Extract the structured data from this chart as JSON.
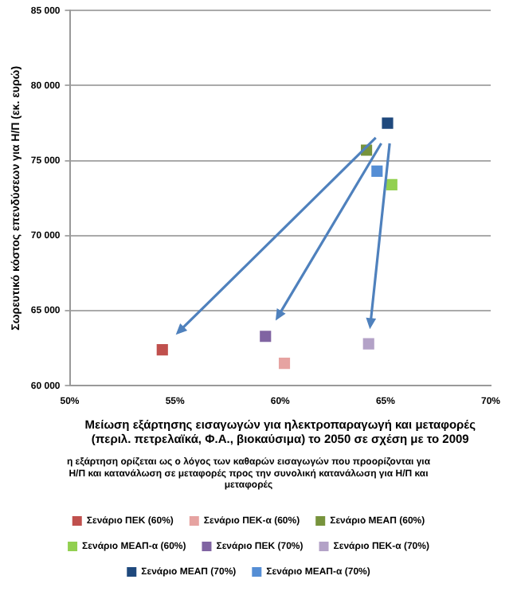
{
  "chart_data": {
    "type": "scatter",
    "marker": "square",
    "legend": "bottom",
    "grid": "y",
    "xlabel": "Μείωση εξάρτησης εισαγωγών για ηλεκτροπαραγωγή και μεταφορές (περιλ. πετρελαϊκά, Φ.Α., βιοκαύσιμα) το 2050 σε σχέση με το 2009",
    "ylabel": "Σωρευτικό κόστος επενδύσεων για Η/Π (εκ. ευρώ)",
    "annotations": [
      "η εξάρτηση ορίζεται ως ο λόγος των καθαρών εισαγωγών που προορίζονται για Η/Π και κατανάλωση σε μεταφορές προς την συνολική κατανάλωση για Η/Π και μεταφορές"
    ],
    "xlim": [
      50,
      70
    ],
    "xticks": [
      {
        "value": 50,
        "label": "50%"
      },
      {
        "value": 55,
        "label": "55%"
      },
      {
        "value": 60,
        "label": "60%"
      },
      {
        "value": 65,
        "label": "65%"
      },
      {
        "value": 70,
        "label": "70%"
      }
    ],
    "ylim": [
      60000,
      85000
    ],
    "yticks": [
      {
        "value": 60000,
        "label": "60 000"
      },
      {
        "value": 65000,
        "label": "65 000"
      },
      {
        "value": 70000,
        "label": "70 000"
      },
      {
        "value": 75000,
        "label": "75 000"
      },
      {
        "value": 80000,
        "label": "80 000"
      },
      {
        "value": 85000,
        "label": "85 000"
      }
    ],
    "series": [
      {
        "name": "Σενάριο ΠΕΚ (60%)",
        "color": "#c0504d",
        "x": [
          54.4
        ],
        "values": [
          62400
        ]
      },
      {
        "name": "Σενάριο ΠΕΚ-α (60%)",
        "color": "#e6a3a1",
        "x": [
          60.2
        ],
        "values": [
          61500
        ]
      },
      {
        "name": "Σενάριο ΜΕΑΠ (60%)",
        "color": "#77933c",
        "x": [
          64.1
        ],
        "values": [
          75700
        ]
      },
      {
        "name": "Σενάριο ΜΕΑΠ-α (60%)",
        "color": "#92d050",
        "x": [
          65.3
        ],
        "values": [
          73400
        ]
      },
      {
        "name": "Σενάριο ΠΕΚ (70%)",
        "color": "#8064a2",
        "x": [
          59.3
        ],
        "values": [
          63300
        ]
      },
      {
        "name": "Σενάριο ΠΕΚ-α (70%)",
        "color": "#b3a2c7",
        "x": [
          64.2
        ],
        "values": [
          62800
        ]
      },
      {
        "name": "Σενάριο ΜΕΑΠ (70%)",
        "color": "#1f497d",
        "x": [
          65.1
        ],
        "values": [
          77500
        ]
      },
      {
        "name": "Σενάριο ΜΕΑΠ-α (70%)",
        "color": "#558ed5",
        "x": [
          64.6
        ],
        "values": [
          74300
        ]
      }
    ]
  }
}
